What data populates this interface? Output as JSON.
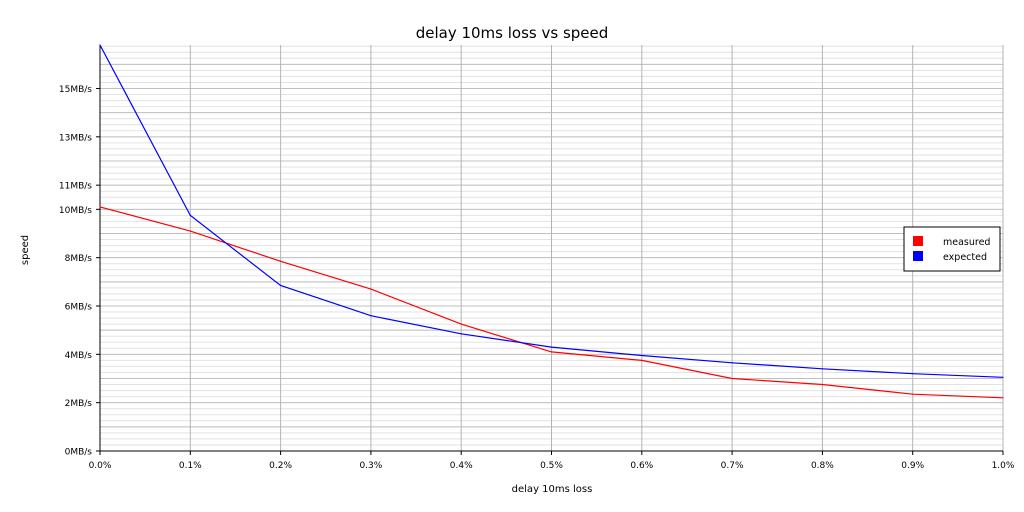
{
  "chart_data": {
    "type": "line",
    "title": "delay 10ms loss vs speed",
    "xlabel": "delay 10ms loss",
    "ylabel": "speed",
    "x": [
      0.0,
      0.1,
      0.2,
      0.3,
      0.4,
      0.5,
      0.6,
      0.7,
      0.8,
      0.9,
      1.0
    ],
    "x_tick_labels": [
      "0.0%",
      "0.1%",
      "0.2%",
      "0.3%",
      "0.4%",
      "0.5%",
      "0.6%",
      "0.7%",
      "0.8%",
      "0.9%",
      "1.0%"
    ],
    "y_ticks": [
      0,
      2,
      4,
      6,
      8,
      10,
      11,
      13,
      15
    ],
    "y_tick_labels": [
      "0MB/s",
      "2MB/s",
      "4MB/s",
      "6MB/s",
      "8MB/s",
      "10MB/s",
      "11MB/s",
      "13MB/s",
      "15MB/s"
    ],
    "xlim": [
      0.0,
      1.0
    ],
    "ylim": [
      0,
      16.8
    ],
    "grid": true,
    "legend_position": "right",
    "series": [
      {
        "name": "measured",
        "color": "#ff0000",
        "values": [
          10.1,
          9.1,
          7.85,
          6.7,
          5.25,
          4.1,
          3.75,
          3.0,
          2.75,
          2.35,
          2.2
        ]
      },
      {
        "name": "expected",
        "color": "#0000ff",
        "values": [
          16.8,
          9.75,
          6.85,
          5.6,
          4.85,
          4.3,
          3.95,
          3.65,
          3.4,
          3.2,
          3.05
        ]
      }
    ]
  }
}
